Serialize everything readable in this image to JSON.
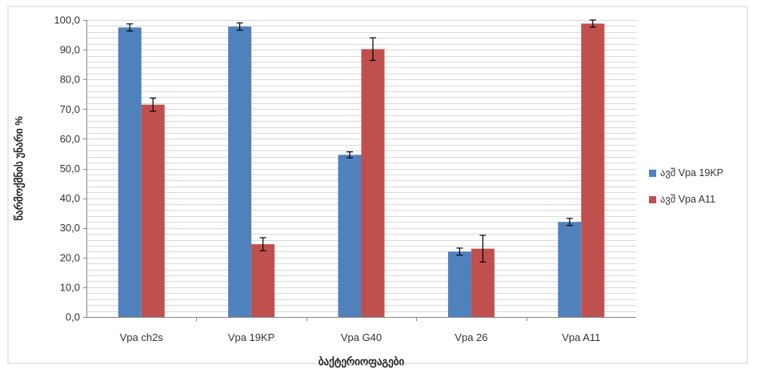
{
  "chart_data": {
    "type": "bar",
    "categories": [
      "Vpa ch2s",
      "Vpa 19KP",
      "Vpa G40",
      "Vpa 26",
      "Vpa A11"
    ],
    "series": [
      {
        "name": "ავშ Vpa 19KP",
        "color": "#4F81BD",
        "values": [
          97.5,
          97.8,
          54.6,
          22.0,
          32.0
        ],
        "errors": [
          1.2,
          1.2,
          1.0,
          1.2,
          1.2
        ]
      },
      {
        "name": "ავშ Vpa A11",
        "color": "#C0504D",
        "values": [
          71.5,
          24.5,
          90.2,
          23.0,
          98.8
        ],
        "errors": [
          2.2,
          2.2,
          3.8,
          4.5,
          1.2
        ]
      }
    ],
    "ylim": [
      0,
      100
    ],
    "yticks": [
      "0,0",
      "10,0",
      "20,0",
      "30,0",
      "40,0",
      "50,0",
      "60,0",
      "70,0",
      "80,0",
      "90,0",
      "100,0"
    ],
    "ytick_step": 10,
    "minor_grid_step": 2,
    "xlabel": "ბაქტერიოფაგები",
    "ylabel": "წარმოქმნის უნარი %",
    "grid": true,
    "legend_position": "right"
  }
}
